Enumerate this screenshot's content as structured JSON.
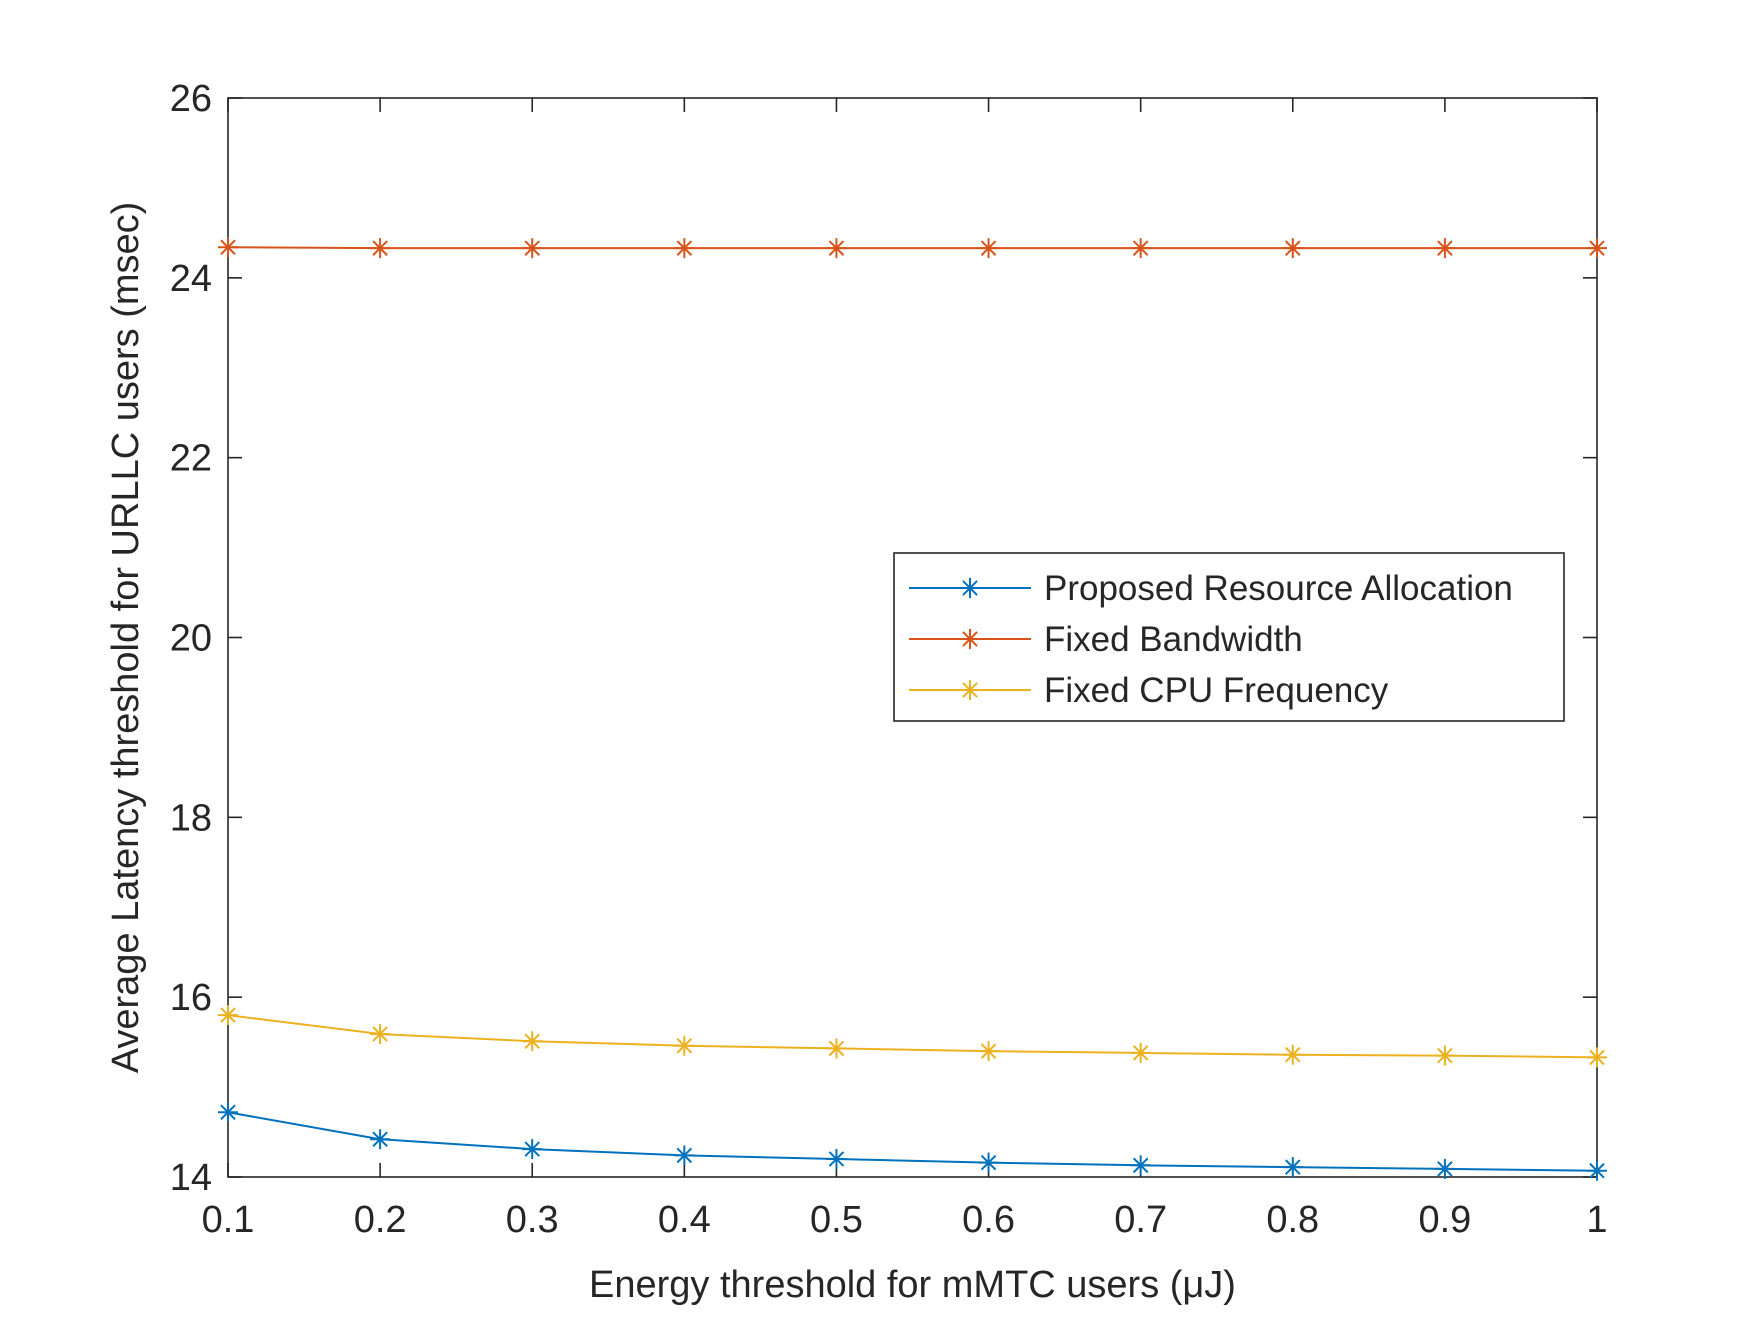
{
  "chart_data": {
    "type": "line",
    "title": "",
    "xlabel": "Energy threshold for mMTC users (μJ)",
    "ylabel": "Average Latency threshold for URLLC users (msec)",
    "x": [
      0.1,
      0.2,
      0.3,
      0.4,
      0.5,
      0.6,
      0.7,
      0.8,
      0.9,
      1.0
    ],
    "xlim": [
      0.1,
      1.0
    ],
    "ylim": [
      14,
      26
    ],
    "xticks": [
      0.1,
      0.2,
      0.3,
      0.4,
      0.5,
      0.6,
      0.7,
      0.8,
      0.9,
      1.0
    ],
    "xtick_labels": [
      "0.1",
      "0.2",
      "0.3",
      "0.4",
      "0.5",
      "0.6",
      "0.7",
      "0.8",
      "0.9",
      "1"
    ],
    "yticks": [
      14,
      16,
      18,
      20,
      22,
      24,
      26
    ],
    "ytick_labels": [
      "14",
      "16",
      "18",
      "20",
      "22",
      "24",
      "26"
    ],
    "grid": false,
    "legend_position": "center-right",
    "series": [
      {
        "name": "Proposed Resource Allocation",
        "color": "#0072BD",
        "marker": "asterisk",
        "values": [
          14.72,
          14.42,
          14.31,
          14.24,
          14.2,
          14.16,
          14.13,
          14.11,
          14.09,
          14.07
        ]
      },
      {
        "name": "Fixed Bandwidth",
        "color": "#D95319",
        "marker": "asterisk",
        "values": [
          24.34,
          24.33,
          24.33,
          24.33,
          24.33,
          24.33,
          24.33,
          24.33,
          24.33,
          24.33
        ]
      },
      {
        "name": "Fixed CPU Frequency",
        "color": "#EDB120",
        "marker": "asterisk",
        "values": [
          15.8,
          15.59,
          15.51,
          15.46,
          15.43,
          15.4,
          15.38,
          15.36,
          15.35,
          15.33
        ]
      }
    ]
  }
}
